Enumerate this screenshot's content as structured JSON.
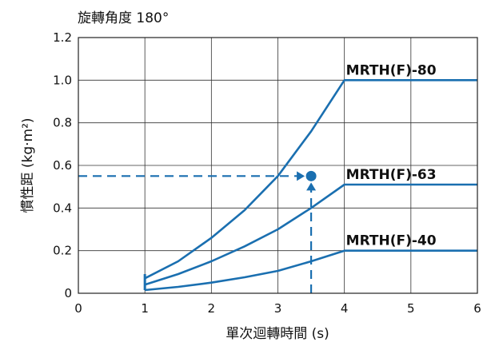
{
  "chart_data": {
    "type": "line",
    "subtitle": "旋轉角度 180°",
    "xlabel": "單次迴轉時間 (s)",
    "ylabel": "慣性距 (kg·m²)",
    "xlim": [
      0,
      6
    ],
    "ylim": [
      0,
      1.2
    ],
    "xticks": [
      0,
      1,
      2,
      3,
      4,
      5,
      6
    ],
    "yticks": [
      0,
      0.2,
      0.4,
      0.6,
      0.8,
      1.0,
      1.2
    ],
    "xtick_labels": [
      "0",
      "1",
      "2",
      "3",
      "4",
      "5",
      "6"
    ],
    "ytick_labels": [
      "0",
      "0.2",
      "0.4",
      "0.6",
      "0.8",
      "1.0",
      "1.2"
    ],
    "grid": true,
    "line_color": "#1a6fb0",
    "series": [
      {
        "name": "MRTH(F)-80",
        "x": [
          1,
          1.5,
          2,
          2.5,
          3,
          3.5,
          4,
          6
        ],
        "y": [
          0.07,
          0.15,
          0.26,
          0.39,
          0.55,
          0.76,
          1.0,
          1.0
        ]
      },
      {
        "name": "MRTH(F)-63",
        "x": [
          1,
          1.5,
          2,
          2.5,
          3,
          3.5,
          4,
          6
        ],
        "y": [
          0.04,
          0.09,
          0.15,
          0.22,
          0.3,
          0.4,
          0.51,
          0.51
        ]
      },
      {
        "name": "MRTH(F)-40",
        "x": [
          1,
          1.5,
          2,
          2.5,
          3,
          3.5,
          4,
          6
        ],
        "y": [
          0.015,
          0.03,
          0.05,
          0.075,
          0.105,
          0.15,
          0.2,
          0.2
        ]
      }
    ],
    "start_bracket": {
      "x": 1,
      "y_from": 0.015,
      "y_to": 0.09
    },
    "example_point": {
      "x": 3.5,
      "y": 0.55
    }
  }
}
